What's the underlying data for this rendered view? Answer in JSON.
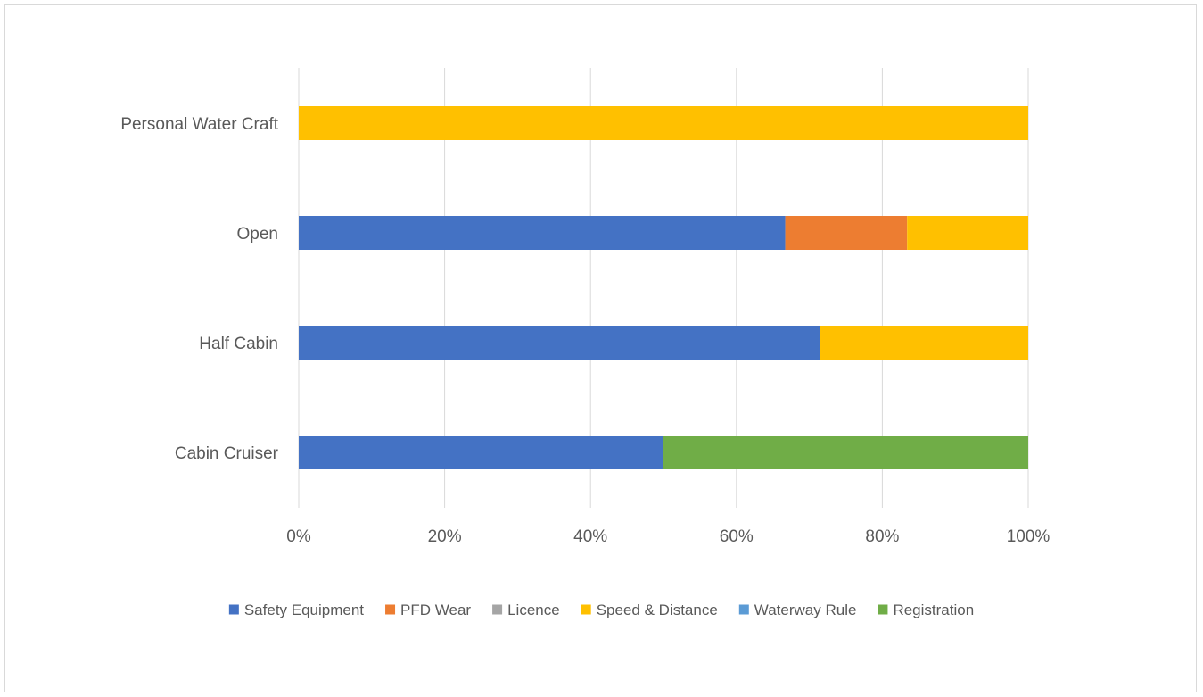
{
  "chart_data": {
    "type": "bar",
    "orientation": "horizontal",
    "stacking": "percent",
    "title": "",
    "xlabel": "",
    "ylabel": "",
    "categories": [
      "Personal Water Craft",
      "Open",
      "Half Cabin",
      "Cabin Cruiser"
    ],
    "x_ticks": [
      "0%",
      "20%",
      "40%",
      "60%",
      "80%",
      "100%"
    ],
    "xlim": [
      0,
      100
    ],
    "grid": true,
    "legend_position": "bottom",
    "series": [
      {
        "name": "Safety Equipment",
        "color": "#4472C4",
        "values": [
          0,
          66.7,
          71.4,
          50
        ]
      },
      {
        "name": "PFD Wear",
        "color": "#ED7D31",
        "values": [
          0,
          16.7,
          0,
          0
        ]
      },
      {
        "name": "Licence",
        "color": "#A5A5A5",
        "values": [
          0,
          0,
          0,
          0
        ]
      },
      {
        "name": "Speed & Distance",
        "color": "#FFC000",
        "values": [
          100,
          16.6,
          28.6,
          0
        ]
      },
      {
        "name": "Waterway Rule",
        "color": "#5B9BD5",
        "values": [
          0,
          0,
          0,
          0
        ]
      },
      {
        "name": "Registration",
        "color": "#70AD47",
        "values": [
          0,
          0,
          0,
          50
        ]
      }
    ]
  }
}
